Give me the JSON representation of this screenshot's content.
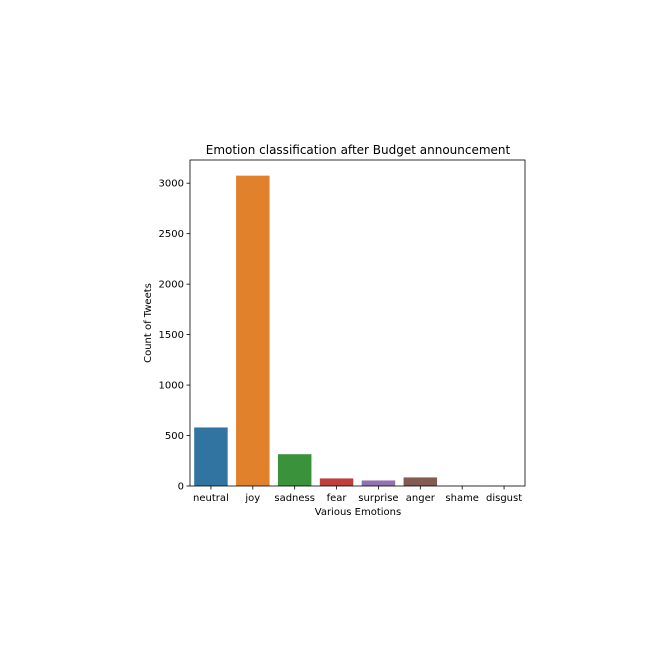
{
  "chart_data": {
    "type": "bar",
    "title": "Emotion classification after Budget announcement",
    "xlabel": "Various Emotions",
    "ylabel": "Count of Tweets",
    "categories": [
      "neutral",
      "joy",
      "sadness",
      "fear",
      "surprise",
      "anger",
      "shame",
      "disgust"
    ],
    "values": [
      580,
      3075,
      315,
      75,
      55,
      85,
      2,
      1
    ],
    "colors": [
      "#3274a1",
      "#e1812c",
      "#3a923a",
      "#c03d3e",
      "#9372b2",
      "#845b53",
      "#d684bd",
      "#7f7f7f"
    ],
    "yticks": [
      0,
      500,
      1000,
      1500,
      2000,
      2500,
      3000
    ],
    "ylim": [
      0,
      3230
    ],
    "grid": false,
    "legend": "none"
  }
}
